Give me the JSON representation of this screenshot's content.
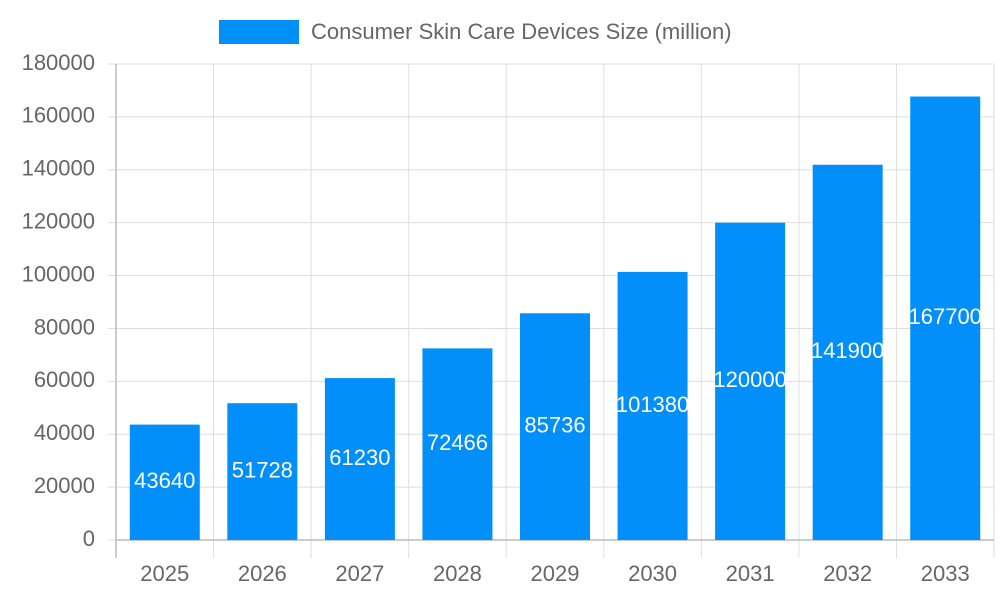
{
  "chart_data": {
    "type": "bar",
    "categories": [
      "2025",
      "2026",
      "2027",
      "2028",
      "2029",
      "2030",
      "2031",
      "2032",
      "2033"
    ],
    "series": [
      {
        "name": "Consumer Skin Care Devices Size (million)",
        "color": "#038ffa",
        "values": [
          43640,
          51728,
          61230,
          72466,
          85736,
          101380,
          120000,
          141900,
          167700
        ]
      }
    ],
    "ylim": [
      0,
      180000
    ],
    "yticks": [
      0,
      20000,
      40000,
      60000,
      80000,
      100000,
      120000,
      140000,
      160000,
      180000
    ],
    "grid": true,
    "legend": "top",
    "data_labels": true
  }
}
